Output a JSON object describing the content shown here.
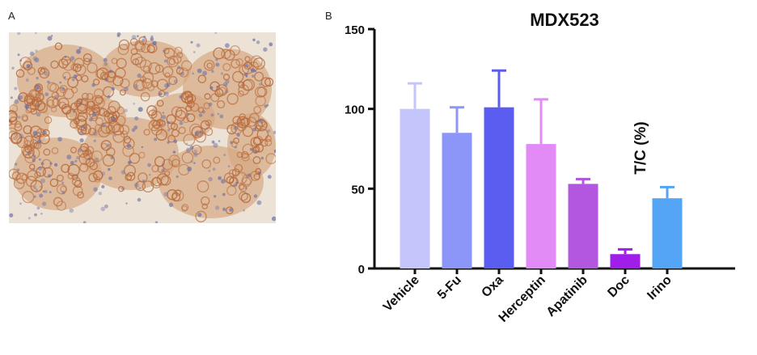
{
  "panels": {
    "a_label": "A",
    "b_label": "B"
  },
  "micrograph": {
    "icon": "ihc-micrograph-image",
    "colors": {
      "background": "#ece3d6",
      "stain": "#b86a3c",
      "nuclei": "#6b6fa8"
    }
  },
  "chart_data": {
    "type": "bar",
    "title": "MDX523",
    "xlabel": "",
    "ylabel": "T/C (%)",
    "ylim": [
      0,
      150
    ],
    "yticks": [
      0,
      50,
      100,
      150
    ],
    "grid": false,
    "categories": [
      "Vehicle",
      "5-Fu",
      "Oxa",
      "Herceptin",
      "Apatinib",
      "Doc",
      "Irino"
    ],
    "values": [
      100,
      85,
      101,
      78,
      53,
      9,
      44
    ],
    "errors": [
      16,
      16,
      23,
      28,
      3,
      3,
      7
    ],
    "colors": [
      "#c3c5fb",
      "#8c95f8",
      "#5b5cf0",
      "#e28af5",
      "#b457e0",
      "#a01ee9",
      "#55a5f7"
    ]
  }
}
